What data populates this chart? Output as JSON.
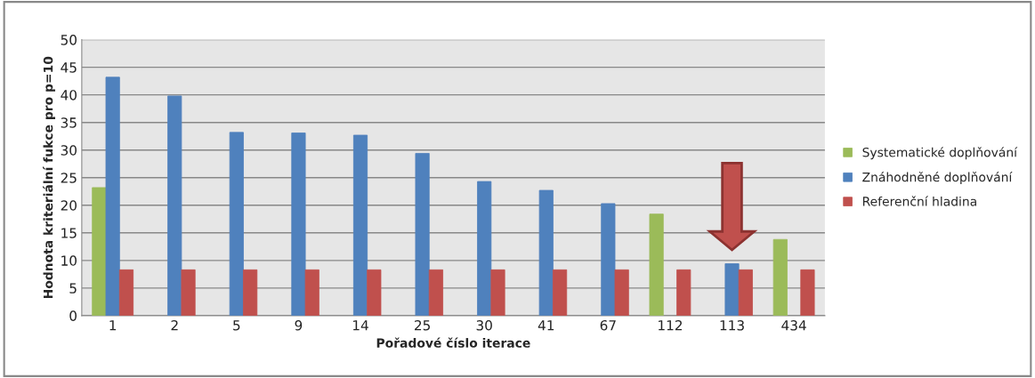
{
  "chart_data": {
    "type": "bar",
    "xlabel": "Pořadové číslo iterace",
    "ylabel": "Hodnota kriteriální fukce pro p=10",
    "categories": [
      "1",
      "2",
      "5",
      "9",
      "14",
      "25",
      "30",
      "41",
      "67",
      "112",
      "113",
      "434"
    ],
    "series": [
      {
        "name": "Systematické doplňování",
        "color": "#9bbb59",
        "values": [
          23.2,
          null,
          null,
          null,
          null,
          null,
          null,
          null,
          null,
          18.4,
          null,
          13.8
        ]
      },
      {
        "name": "Znáhodněné doplňování",
        "color": "#4f81bd",
        "values": [
          43.2,
          39.8,
          33.2,
          33.1,
          32.7,
          29.4,
          24.3,
          22.7,
          20.3,
          null,
          9.4,
          null
        ]
      },
      {
        "name": "Referenční hladina",
        "color": "#c0504d",
        "values": [
          8.3,
          8.3,
          8.3,
          8.3,
          8.3,
          8.3,
          8.3,
          8.3,
          8.3,
          8.3,
          8.3,
          8.3
        ]
      }
    ],
    "ylim": [
      0,
      50
    ],
    "yticks": [
      0,
      5,
      10,
      15,
      20,
      25,
      30,
      35,
      40,
      45,
      50
    ],
    "grid": "y",
    "legend": "right"
  }
}
